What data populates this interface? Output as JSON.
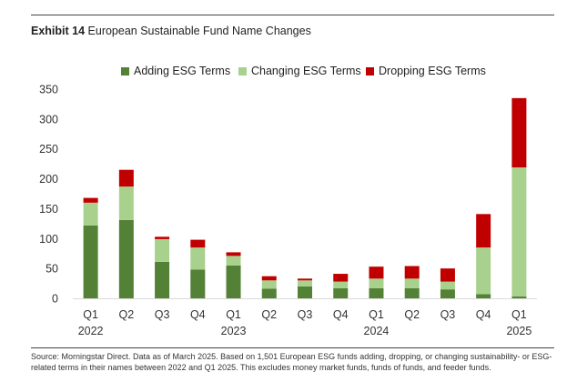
{
  "title": {
    "exhibit": "Exhibit 14",
    "text": "European Sustainable Fund Name Changes"
  },
  "source": "Source: Morningstar Direct. Data as of March 2025. Based on 1,501 European ESG funds adding, dropping, or changing sustainability- or ESG-related terms in their names between 2022 and Q1 2025. This excludes money market funds, funds of funds, and feeder funds.",
  "chart_data": {
    "type": "bar",
    "stacked": true,
    "title": "European Sustainable Fund Name Changes",
    "categories": [
      "Q1",
      "Q2",
      "Q3",
      "Q4",
      "Q1",
      "Q2",
      "Q3",
      "Q4",
      "Q1",
      "Q2",
      "Q3",
      "Q4",
      "Q1"
    ],
    "year_labels": [
      "2022",
      "",
      "",
      "",
      "2023",
      "",
      "",
      "",
      "2024",
      "",
      "",
      "",
      "2025"
    ],
    "series": [
      {
        "name": "Adding ESG Terms",
        "color": "#538135",
        "values": [
          122,
          131,
          61,
          48,
          55,
          16,
          20,
          17,
          17,
          17,
          15,
          7,
          3
        ]
      },
      {
        "name": "Changing ESG Terms",
        "color": "#a9d18e",
        "values": [
          38,
          56,
          38,
          37,
          16,
          14,
          10,
          11,
          16,
          16,
          13,
          78,
          216
        ]
      },
      {
        "name": "Dropping ESG Terms",
        "color": "#c00000",
        "values": [
          8,
          28,
          4,
          13,
          6,
          7,
          3,
          13,
          20,
          21,
          22,
          56,
          116
        ]
      }
    ],
    "ylim": [
      0,
      350
    ],
    "yticks": [
      0,
      50,
      100,
      150,
      200,
      250,
      300,
      350
    ],
    "grid": false,
    "legend": "top"
  }
}
